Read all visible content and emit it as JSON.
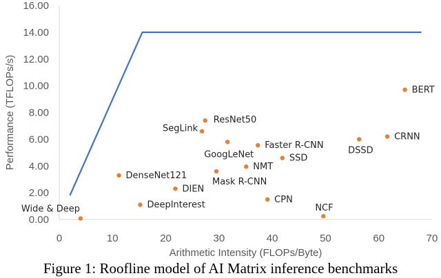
{
  "chart_data": {
    "type": "scatter",
    "title": "",
    "xlabel": "Arithmetic Intensity (FLOPs/Byte)",
    "ylabel": "Performance (TFLOPs/s)",
    "xlim": [
      0,
      70
    ],
    "ylim": [
      0,
      16
    ],
    "x_ticks": [
      "0",
      "10",
      "20",
      "30",
      "40",
      "50",
      "60",
      "70"
    ],
    "y_ticks": [
      "0.00",
      "2.00",
      "4.00",
      "6.00",
      "8.00",
      "10.00",
      "12.00",
      "14.00",
      "16.00"
    ],
    "grid": false,
    "roofline": {
      "x": [
        2,
        15.6,
        68
      ],
      "y": [
        1.8,
        14.0,
        14.0
      ]
    },
    "points": [
      {
        "label": "Wide & Deep",
        "x": 4,
        "y": 0.08
      },
      {
        "label": "DenseNet121",
        "x": 11.2,
        "y": 3.3
      },
      {
        "label": "DeepInterest",
        "x": 15.2,
        "y": 1.1
      },
      {
        "label": "DIEN",
        "x": 21.8,
        "y": 2.3
      },
      {
        "label": "SegLink",
        "x": 26.8,
        "y": 6.6
      },
      {
        "label": "ResNet50",
        "x": 27.4,
        "y": 7.4
      },
      {
        "label": "Mask R-CNN",
        "x": 29.5,
        "y": 3.6
      },
      {
        "label": "GoogLeNet",
        "x": 31.6,
        "y": 5.8
      },
      {
        "label": "NMT",
        "x": 35.1,
        "y": 3.95
      },
      {
        "label": "Faster R-CNN",
        "x": 37.3,
        "y": 5.55
      },
      {
        "label": "CPN",
        "x": 39.1,
        "y": 1.5
      },
      {
        "label": "SSD",
        "x": 41.9,
        "y": 4.6
      },
      {
        "label": "NCF",
        "x": 49.6,
        "y": 0.25
      },
      {
        "label": "DSSD",
        "x": 56.3,
        "y": 6.0
      },
      {
        "label": "CRNN",
        "x": 61.6,
        "y": 6.2
      },
      {
        "label": "BERT",
        "x": 64.9,
        "y": 9.7
      }
    ],
    "colors": {
      "roofline": "#4472C4",
      "points": "#ED7D31",
      "axis": "#D9D9D9",
      "text": "#595959",
      "point_text": "#262626"
    }
  },
  "caption": "Figure 1: Roofline model of AI Matrix inference benchmarks"
}
